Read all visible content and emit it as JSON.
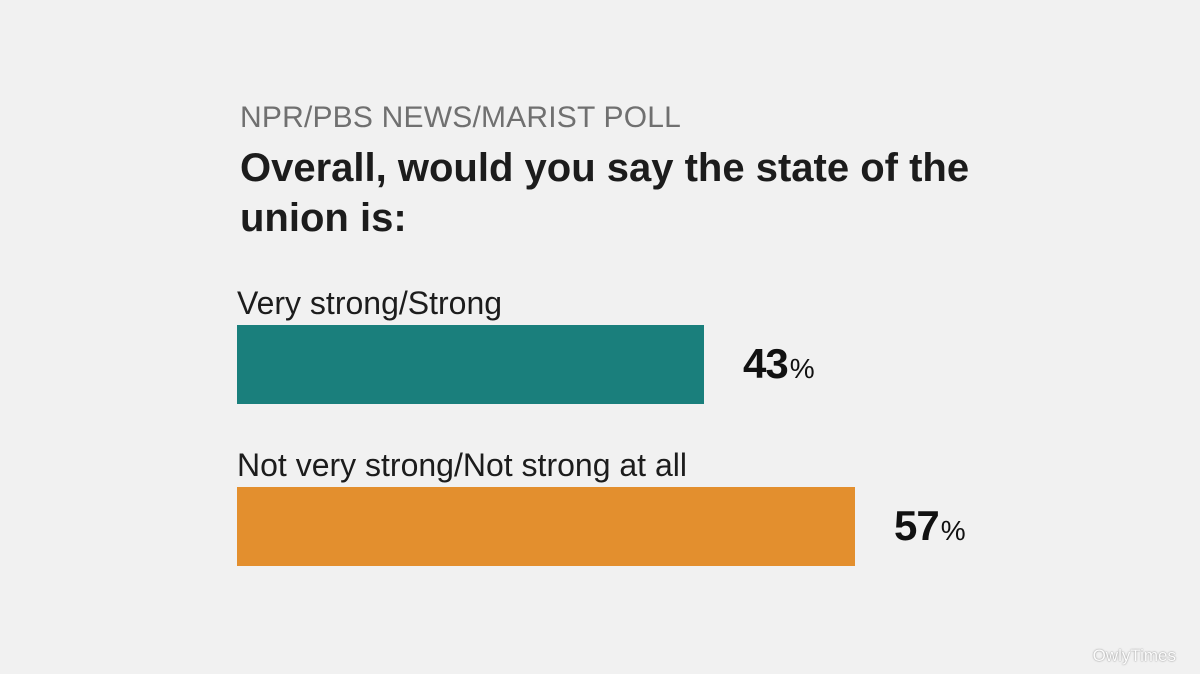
{
  "header": {
    "kicker": "NPR/PBS NEWS/MARIST POLL",
    "title": "Overall, would you say the state of the union is:"
  },
  "chart_data": {
    "type": "bar",
    "orientation": "horizontal",
    "title": "Overall, would you say the state of the union is:",
    "categories": [
      "Very strong/Strong",
      "Not very strong/Not strong at all"
    ],
    "values": [
      43,
      57
    ],
    "unit": "%",
    "colors": [
      "#1a7f7c",
      "#e38f2e"
    ],
    "grid": false,
    "legend": "none"
  },
  "watermark": "OwlyTimes"
}
